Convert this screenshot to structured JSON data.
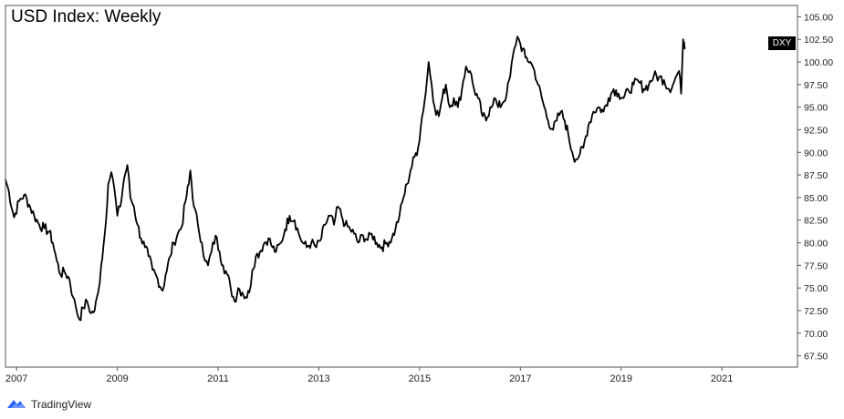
{
  "chart_data": {
    "type": "line",
    "title": "USD Index: Weekly",
    "series": [
      {
        "name": "DXY",
        "color": "#000000",
        "points": [
          [
            2006.78,
            87.0
          ],
          [
            2006.85,
            85.6
          ],
          [
            2006.95,
            82.8
          ],
          [
            2007.05,
            84.6
          ],
          [
            2007.15,
            85.3
          ],
          [
            2007.25,
            84.2
          ],
          [
            2007.35,
            83.0
          ],
          [
            2007.45,
            82.0
          ],
          [
            2007.55,
            81.6
          ],
          [
            2007.65,
            81.2
          ],
          [
            2007.72,
            80.0
          ],
          [
            2007.8,
            78.0
          ],
          [
            2007.87,
            76.5
          ],
          [
            2007.95,
            76.8
          ],
          [
            2008.05,
            76.0
          ],
          [
            2008.12,
            74.0
          ],
          [
            2008.18,
            72.8
          ],
          [
            2008.25,
            71.5
          ],
          [
            2008.32,
            72.8
          ],
          [
            2008.4,
            73.5
          ],
          [
            2008.48,
            72.2
          ],
          [
            2008.55,
            72.5
          ],
          [
            2008.62,
            74.5
          ],
          [
            2008.68,
            77.5
          ],
          [
            2008.75,
            81.0
          ],
          [
            2008.82,
            86.5
          ],
          [
            2008.88,
            87.8
          ],
          [
            2008.94,
            86.0
          ],
          [
            2009.0,
            83.0
          ],
          [
            2009.06,
            84.0
          ],
          [
            2009.13,
            87.0
          ],
          [
            2009.2,
            88.6
          ],
          [
            2009.26,
            85.0
          ],
          [
            2009.33,
            84.0
          ],
          [
            2009.4,
            82.0
          ],
          [
            2009.47,
            80.5
          ],
          [
            2009.55,
            79.5
          ],
          [
            2009.62,
            78.5
          ],
          [
            2009.7,
            77.0
          ],
          [
            2009.8,
            76.0
          ],
          [
            2009.9,
            74.7
          ],
          [
            2009.96,
            76.5
          ],
          [
            2010.05,
            78.5
          ],
          [
            2010.12,
            80.0
          ],
          [
            2010.2,
            81.0
          ],
          [
            2010.28,
            81.8
          ],
          [
            2010.35,
            84.5
          ],
          [
            2010.42,
            86.5
          ],
          [
            2010.45,
            88.0
          ],
          [
            2010.52,
            84.0
          ],
          [
            2010.6,
            82.0
          ],
          [
            2010.68,
            80.0
          ],
          [
            2010.74,
            78.0
          ],
          [
            2010.8,
            77.5
          ],
          [
            2010.87,
            79.0
          ],
          [
            2010.95,
            80.8
          ],
          [
            2011.03,
            79.0
          ],
          [
            2011.1,
            77.5
          ],
          [
            2011.18,
            76.5
          ],
          [
            2011.25,
            75.0
          ],
          [
            2011.33,
            73.5
          ],
          [
            2011.4,
            75.0
          ],
          [
            2011.48,
            74.5
          ],
          [
            2011.55,
            74.0
          ],
          [
            2011.62,
            74.5
          ],
          [
            2011.68,
            77.0
          ],
          [
            2011.75,
            78.5
          ],
          [
            2011.83,
            79.0
          ],
          [
            2011.92,
            80.0
          ],
          [
            2012.0,
            80.5
          ],
          [
            2012.08,
            79.5
          ],
          [
            2012.15,
            79.0
          ],
          [
            2012.25,
            80.0
          ],
          [
            2012.33,
            81.5
          ],
          [
            2012.42,
            83.0
          ],
          [
            2012.52,
            82.5
          ],
          [
            2012.6,
            81.0
          ],
          [
            2012.68,
            80.0
          ],
          [
            2012.76,
            79.5
          ],
          [
            2012.85,
            80.0
          ],
          [
            2012.95,
            79.5
          ],
          [
            2013.05,
            80.5
          ],
          [
            2013.12,
            82.0
          ],
          [
            2013.22,
            83.0
          ],
          [
            2013.3,
            82.0
          ],
          [
            2013.38,
            84.0
          ],
          [
            2013.45,
            83.0
          ],
          [
            2013.52,
            82.0
          ],
          [
            2013.62,
            81.5
          ],
          [
            2013.7,
            81.0
          ],
          [
            2013.78,
            80.0
          ],
          [
            2013.88,
            80.8
          ],
          [
            2013.97,
            80.3
          ],
          [
            2014.05,
            81.0
          ],
          [
            2014.15,
            80.0
          ],
          [
            2014.25,
            79.5
          ],
          [
            2014.35,
            80.0
          ],
          [
            2014.45,
            80.5
          ],
          [
            2014.52,
            81.5
          ],
          [
            2014.6,
            83.0
          ],
          [
            2014.68,
            85.0
          ],
          [
            2014.75,
            86.5
          ],
          [
            2014.82,
            88.0
          ],
          [
            2014.9,
            89.5
          ],
          [
            2014.97,
            90.5
          ],
          [
            2015.05,
            94.0
          ],
          [
            2015.12,
            96.5
          ],
          [
            2015.18,
            100.0
          ],
          [
            2015.24,
            97.5
          ],
          [
            2015.3,
            95.0
          ],
          [
            2015.38,
            94.0
          ],
          [
            2015.45,
            96.0
          ],
          [
            2015.52,
            97.5
          ],
          [
            2015.6,
            95.0
          ],
          [
            2015.68,
            96.0
          ],
          [
            2015.76,
            95.0
          ],
          [
            2015.84,
            97.0
          ],
          [
            2015.92,
            99.5
          ],
          [
            2016.0,
            99.0
          ],
          [
            2016.08,
            97.0
          ],
          [
            2016.16,
            96.0
          ],
          [
            2016.25,
            94.0
          ],
          [
            2016.32,
            93.5
          ],
          [
            2016.4,
            95.0
          ],
          [
            2016.48,
            96.0
          ],
          [
            2016.56,
            95.0
          ],
          [
            2016.65,
            95.5
          ],
          [
            2016.73,
            96.5
          ],
          [
            2016.8,
            98.5
          ],
          [
            2016.88,
            101.5
          ],
          [
            2016.94,
            102.8
          ],
          [
            2017.0,
            102.0
          ],
          [
            2017.1,
            100.5
          ],
          [
            2017.2,
            100.0
          ],
          [
            2017.28,
            99.0
          ],
          [
            2017.35,
            97.5
          ],
          [
            2017.45,
            95.5
          ],
          [
            2017.55,
            93.5
          ],
          [
            2017.65,
            92.5
          ],
          [
            2017.72,
            93.5
          ],
          [
            2017.8,
            94.5
          ],
          [
            2017.88,
            93.5
          ],
          [
            2017.95,
            92.0
          ],
          [
            2018.03,
            90.0
          ],
          [
            2018.1,
            89.2
          ],
          [
            2018.18,
            89.8
          ],
          [
            2018.25,
            90.5
          ],
          [
            2018.35,
            93.0
          ],
          [
            2018.45,
            94.5
          ],
          [
            2018.55,
            95.0
          ],
          [
            2018.65,
            94.5
          ],
          [
            2018.75,
            96.0
          ],
          [
            2018.85,
            97.0
          ],
          [
            2018.95,
            96.5
          ],
          [
            2019.05,
            96.0
          ],
          [
            2019.15,
            96.8
          ],
          [
            2019.25,
            97.5
          ],
          [
            2019.35,
            97.8
          ],
          [
            2019.45,
            97.0
          ],
          [
            2019.55,
            97.5
          ],
          [
            2019.65,
            98.5
          ],
          [
            2019.75,
            98.3
          ],
          [
            2019.85,
            98.0
          ],
          [
            2019.95,
            97.0
          ],
          [
            2020.03,
            97.5
          ],
          [
            2020.1,
            98.5
          ],
          [
            2020.15,
            99.0
          ],
          [
            2020.19,
            96.5
          ],
          [
            2020.21,
            99.5
          ],
          [
            2020.23,
            102.5
          ],
          [
            2020.25,
            102.2
          ],
          [
            2020.27,
            101.6
          ]
        ]
      }
    ],
    "xlim": [
      2006.78,
      2022.5
    ],
    "ylim": [
      66.25,
      106.25
    ],
    "x_ticks": [
      {
        "value": 2007,
        "label": "2007"
      },
      {
        "value": 2009,
        "label": "2009"
      },
      {
        "value": 2011,
        "label": "2011"
      },
      {
        "value": 2013,
        "label": "2013"
      },
      {
        "value": 2015,
        "label": "2015"
      },
      {
        "value": 2017,
        "label": "2017"
      },
      {
        "value": 2019,
        "label": "2019"
      },
      {
        "value": 2021,
        "label": "2021"
      }
    ],
    "y_ticks": [
      {
        "value": 105.0,
        "label": "105.00"
      },
      {
        "value": 102.5,
        "label": "102.50"
      },
      {
        "value": 100.0,
        "label": "100.00"
      },
      {
        "value": 97.5,
        "label": "97.50"
      },
      {
        "value": 95.0,
        "label": "95.00"
      },
      {
        "value": 92.5,
        "label": "92.50"
      },
      {
        "value": 90.0,
        "label": "90.00"
      },
      {
        "value": 87.5,
        "label": "87.50"
      },
      {
        "value": 85.0,
        "label": "85.00"
      },
      {
        "value": 82.5,
        "label": "82.50"
      },
      {
        "value": 80.0,
        "label": "80.00"
      },
      {
        "value": 77.5,
        "label": "77.50"
      },
      {
        "value": 75.0,
        "label": "75.00"
      },
      {
        "value": 72.5,
        "label": "72.50"
      },
      {
        "value": 70.0,
        "label": "70.00"
      },
      {
        "value": 67.5,
        "label": "67.50"
      }
    ],
    "grid": false,
    "legend": "none",
    "y_axis_position": "right",
    "series_badge": "DXY"
  },
  "footer": {
    "brand": "TradingView",
    "logo_icon": "tradingview-cloud-icon",
    "logo_color": "#2962ff"
  }
}
